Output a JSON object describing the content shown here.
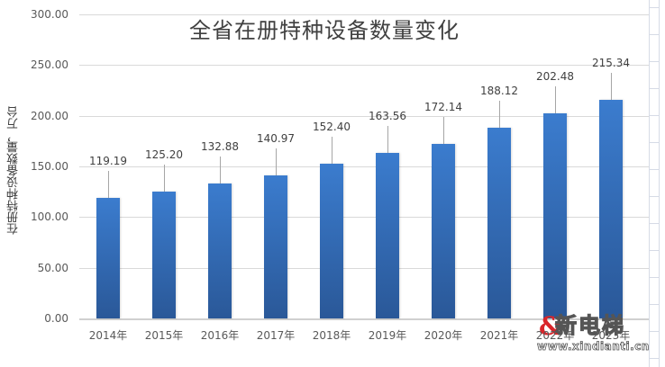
{
  "chart_data": {
    "type": "bar",
    "title": "全省在册特种设备数量变化",
    "xlabel": "",
    "ylabel": "在册特种设备数量，万台",
    "ylim": [
      0,
      300
    ],
    "yticks": [
      "0.00",
      "50.00",
      "100.00",
      "150.00",
      "200.00",
      "250.00",
      "300.00"
    ],
    "grid": true,
    "legend": null,
    "categories": [
      "2014年",
      "2015年",
      "2016年",
      "2017年",
      "2018年",
      "2019年",
      "2020年",
      "2021年",
      "2022年",
      "2023年"
    ],
    "values": [
      119.19,
      125.2,
      132.88,
      140.97,
      152.4,
      163.56,
      172.14,
      188.12,
      202.48,
      215.34
    ],
    "value_labels": [
      "119.19",
      "125.20",
      "132.88",
      "140.97",
      "152.40",
      "163.56",
      "172.14",
      "188.12",
      "202.48",
      "215.34"
    ],
    "bar_color": "#2f6bb8"
  },
  "watermark": {
    "name": "新电梯",
    "url": "www.xindianti.cn",
    "logo_glyph": "&"
  }
}
